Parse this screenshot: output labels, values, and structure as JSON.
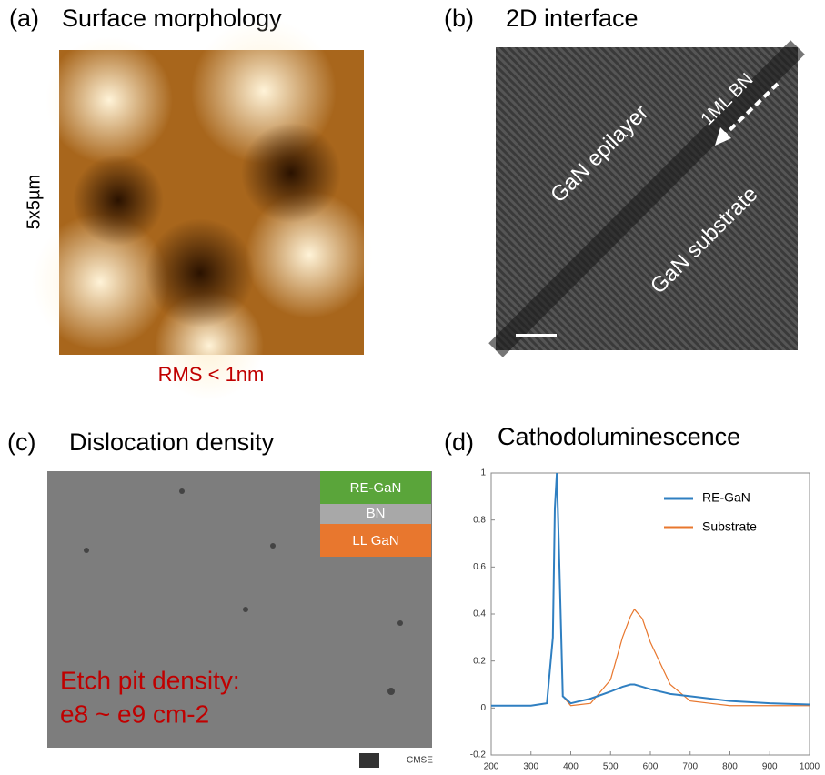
{
  "panels": [
    {
      "label": "(a)",
      "title": "Surface morphology",
      "side_label": "5x5µm",
      "caption": "RMS < 1nm"
    },
    {
      "label": "(b)",
      "title": "2D interface",
      "annotations": [
        "GaN epilayer",
        "1ML BN",
        "GaN substrate"
      ]
    },
    {
      "label": "(c)",
      "title": "Dislocation density",
      "layers": [
        "RE-GaN",
        "BN",
        "LL GaN"
      ],
      "annotation": [
        "Etch pit density:",
        "e8 ~ e9 cm-2"
      ],
      "logo": "CMSE"
    }
  ],
  "chart_data": {
    "type": "line",
    "panel_label": "(d)",
    "title": "Cathodoluminescence",
    "x": [
      200,
      300,
      340,
      355,
      360,
      365,
      370,
      380,
      400,
      450,
      500,
      530,
      550,
      560,
      580,
      600,
      650,
      700,
      750,
      800,
      900,
      1000
    ],
    "series": [
      {
        "name": "RE-GaN",
        "color": "#2f7fc1",
        "values": [
          0.01,
          0.01,
          0.02,
          0.3,
          0.85,
          1.0,
          0.7,
          0.05,
          0.02,
          0.04,
          0.07,
          0.09,
          0.1,
          0.1,
          0.09,
          0.08,
          0.06,
          0.05,
          0.04,
          0.03,
          0.02,
          0.015
        ]
      },
      {
        "name": "Substrate",
        "color": "#e8772e",
        "values": [
          0.01,
          0.01,
          0.02,
          0.3,
          0.85,
          1.0,
          0.7,
          0.05,
          0.01,
          0.02,
          0.12,
          0.3,
          0.39,
          0.42,
          0.38,
          0.28,
          0.1,
          0.03,
          0.02,
          0.01,
          0.01,
          0.01
        ]
      }
    ],
    "xlim": [
      200,
      1000
    ],
    "xticks": [
      200,
      300,
      400,
      500,
      600,
      700,
      800,
      900,
      1000
    ],
    "ylim": [
      -0.2,
      1
    ],
    "yticks": [
      -0.2,
      0,
      0.2,
      0.4,
      0.6,
      0.8,
      1
    ],
    "legend": "upper right"
  }
}
